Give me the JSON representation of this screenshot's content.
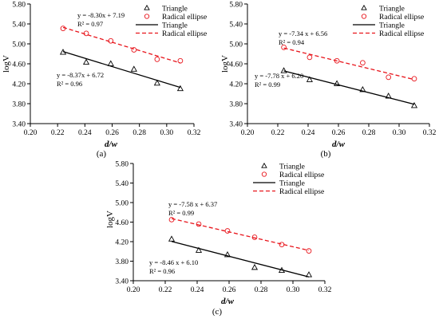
{
  "chart_data": [
    {
      "type": "scatter",
      "panel_label": "(a)",
      "xlabel": "d/w",
      "ylabel": "logV",
      "xlim": [
        0.2,
        0.32
      ],
      "ylim": [
        3.4,
        5.8
      ],
      "x_ticks": [
        "0.20",
        "0.22",
        "0.24",
        "0.26",
        "0.28",
        "0.30",
        "0.32"
      ],
      "y_ticks": [
        "3.40",
        "3.80",
        "4.20",
        "4.60",
        "5.00",
        "5.40",
        "5.80"
      ],
      "legend": {
        "placement": "top-right",
        "entries": [
          "Triangle",
          "Radical ellipse",
          "Triangle",
          "Radical ellipse"
        ]
      },
      "series": [
        {
          "name": "Triangle",
          "marker": "triangle",
          "color": "#000000",
          "x": [
            0.224,
            0.241,
            0.259,
            0.276,
            0.293,
            0.31
          ],
          "y": [
            4.83,
            4.63,
            4.6,
            4.49,
            4.21,
            4.1
          ],
          "fit": {
            "slope": -8.37,
            "intercept": 6.72,
            "line": "solid"
          }
        },
        {
          "name": "Radical ellipse",
          "marker": "circle",
          "color": "#e8141b",
          "x": [
            0.224,
            0.241,
            0.259,
            0.276,
            0.293,
            0.31
          ],
          "y": [
            5.31,
            5.21,
            5.06,
            4.88,
            4.69,
            4.66
          ],
          "fit": {
            "slope": -8.3,
            "intercept": 7.19,
            "line": "dashed"
          }
        }
      ],
      "annotations": [
        {
          "eq": "y = -8.30x + 7.19",
          "r2": "R² = 0.97"
        },
        {
          "eq": "y = -8.37x + 6.72",
          "r2": "R² = 0.96"
        }
      ]
    },
    {
      "type": "scatter",
      "panel_label": "(b)",
      "xlabel": "d/w",
      "ylabel": "logV",
      "xlim": [
        0.2,
        0.32
      ],
      "ylim": [
        3.4,
        5.8
      ],
      "x_ticks": [
        "0.20",
        "0.22",
        "0.24",
        "0.26",
        "0.28",
        "0.30",
        "0.32"
      ],
      "y_ticks": [
        "3.40",
        "3.80",
        "4.20",
        "4.60",
        "5.00",
        "5.40",
        "5.80"
      ],
      "legend": {
        "placement": "top-right",
        "entries": [
          "Triangle",
          "Radical ellipse",
          "Triangle",
          "Radical ellipse"
        ]
      },
      "series": [
        {
          "name": "Triangle",
          "marker": "triangle",
          "color": "#000000",
          "x": [
            0.224,
            0.241,
            0.259,
            0.276,
            0.293,
            0.31
          ],
          "y": [
            4.46,
            4.28,
            4.2,
            4.08,
            3.95,
            3.76
          ],
          "fit": {
            "slope": -7.78,
            "intercept": 6.2,
            "line": "solid"
          }
        },
        {
          "name": "Radical ellipse",
          "marker": "circle",
          "color": "#e8141b",
          "x": [
            0.224,
            0.241,
            0.259,
            0.276,
            0.293,
            0.31
          ],
          "y": [
            4.93,
            4.73,
            4.66,
            4.62,
            4.33,
            4.3
          ],
          "fit": {
            "slope": -7.34,
            "intercept": 6.56,
            "line": "dashed"
          }
        }
      ],
      "annotations": [
        {
          "eq": "y = -7.34 x + 6.56",
          "r2": "R² = 0.94"
        },
        {
          "eq": "y = -7.78 x + 6.20",
          "r2": "R² = 0.99"
        }
      ]
    },
    {
      "type": "scatter",
      "panel_label": "(c)",
      "xlabel": "d/w",
      "ylabel": "logV",
      "xlim": [
        0.2,
        0.32
      ],
      "ylim": [
        3.4,
        5.8
      ],
      "x_ticks": [
        "0.20",
        "0.22",
        "0.24",
        "0.26",
        "0.28",
        "0.30",
        "0.32"
      ],
      "y_ticks": [
        "3.40",
        "3.80",
        "4.20",
        "4.60",
        "5.00",
        "5.40",
        "5.80"
      ],
      "legend": {
        "placement": "top-right",
        "entries": [
          "Triangle",
          "Radical ellipse",
          "Triangle",
          "Radical ellipse"
        ]
      },
      "series": [
        {
          "name": "Triangle",
          "marker": "triangle",
          "color": "#000000",
          "x": [
            0.224,
            0.241,
            0.259,
            0.276,
            0.293,
            0.31
          ],
          "y": [
            4.25,
            4.02,
            3.93,
            3.67,
            3.61,
            3.52
          ],
          "fit": {
            "slope": -8.46,
            "intercept": 6.1,
            "line": "solid"
          }
        },
        {
          "name": "Radical ellipse",
          "marker": "circle",
          "color": "#e8141b",
          "x": [
            0.224,
            0.241,
            0.259,
            0.276,
            0.293,
            0.31
          ],
          "y": [
            4.65,
            4.56,
            4.42,
            4.29,
            4.14,
            4.01
          ],
          "fit": {
            "slope": -7.58,
            "intercept": 6.37,
            "line": "dashed"
          }
        }
      ],
      "annotations": [
        {
          "eq": "y = -7.58 x + 6.37",
          "r2": "R² = 0.99"
        },
        {
          "eq": "y = -8.46 x + 6.10",
          "r2": "R² = 0.96"
        }
      ]
    }
  ]
}
